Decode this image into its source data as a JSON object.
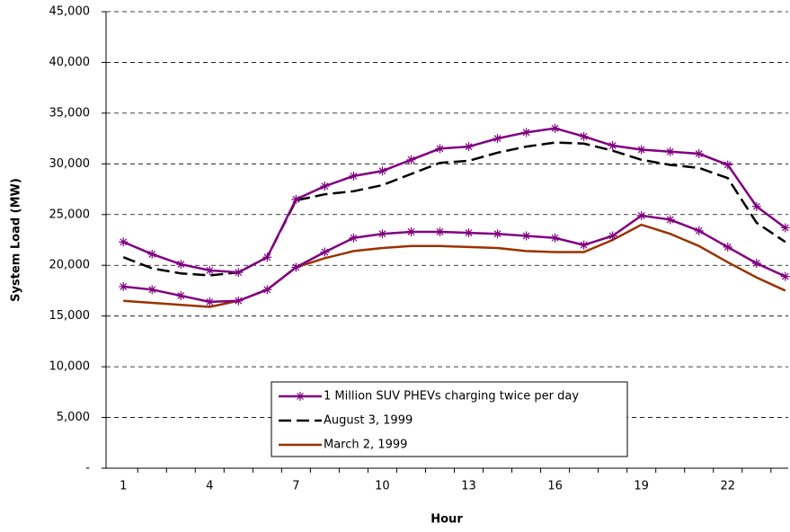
{
  "chart_data": {
    "type": "line",
    "x_label": "Hour",
    "y_label": "System Load (MW)",
    "x": [
      1,
      2,
      3,
      4,
      5,
      6,
      7,
      8,
      9,
      10,
      11,
      12,
      13,
      14,
      15,
      16,
      17,
      18,
      19,
      20,
      21,
      22,
      23,
      24
    ],
    "xlim": [
      0.4,
      24.1
    ],
    "xticks": [
      1,
      4,
      7,
      10,
      13,
      16,
      19,
      22
    ],
    "ylim": [
      0,
      45000
    ],
    "yticks": [
      {
        "value": 0,
        "label": "-"
      },
      {
        "value": 5000,
        "label": "5,000"
      },
      {
        "value": 10000,
        "label": "10,000"
      },
      {
        "value": 15000,
        "label": "15,000"
      },
      {
        "value": 20000,
        "label": "20,000"
      },
      {
        "value": 25000,
        "label": "25,000"
      },
      {
        "value": 30000,
        "label": "30,000"
      },
      {
        "value": 35000,
        "label": "35,000"
      },
      {
        "value": 40000,
        "label": "40,000"
      },
      {
        "value": 45000,
        "label": "45,000"
      }
    ],
    "grid": true,
    "grid_style": "dashed",
    "series": [
      {
        "name": "1 Million SUV PHEVs charging twice per day",
        "color": "#800080",
        "marker": "star",
        "values": [
          22300,
          21100,
          20100,
          19500,
          19300,
          20800,
          26500,
          27800,
          28800,
          29300,
          30400,
          31500,
          31700,
          32500,
          33100,
          33500,
          32700,
          31800,
          31400,
          31200,
          31000,
          29900,
          25800,
          23700
        ]
      },
      {
        "color": "#800080",
        "marker": "star",
        "values": [
          17900,
          17600,
          17000,
          16400,
          16500,
          17600,
          19800,
          21300,
          22700,
          23100,
          23300,
          23300,
          23200,
          23100,
          22900,
          22700,
          22000,
          22900,
          24900,
          24500,
          23400,
          21800,
          20200,
          18900
        ]
      },
      {
        "name": "August 3, 1999",
        "color": "#000000",
        "dash": true,
        "values": [
          20800,
          19700,
          19200,
          19000,
          19300,
          20800,
          26400,
          27000,
          27300,
          27900,
          29000,
          30100,
          30300,
          31100,
          31700,
          32100,
          32000,
          31300,
          30400,
          29900,
          29600,
          28600,
          24200,
          22300
        ]
      },
      {
        "name": "March 2, 1999",
        "color": "#993300",
        "values": [
          16500,
          16300,
          16100,
          15900,
          16500,
          17600,
          19800,
          20700,
          21400,
          21700,
          21900,
          21900,
          21800,
          21700,
          21400,
          21300,
          21300,
          22500,
          24000,
          23100,
          21900,
          20300,
          18800,
          17500
        ]
      }
    ]
  }
}
